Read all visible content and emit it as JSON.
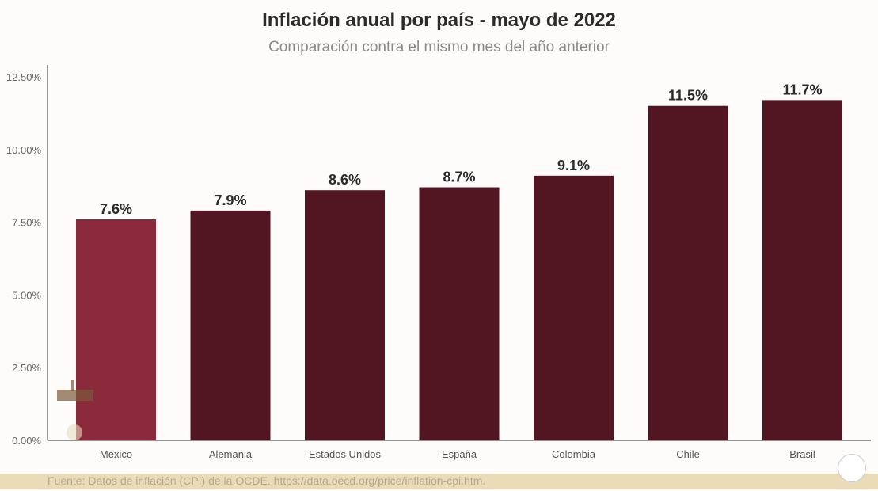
{
  "chart_data": {
    "type": "bar",
    "title": "Inflación anual por país - mayo de 2022",
    "subtitle": "Comparación contra el mismo mes del año anterior",
    "categories": [
      "México",
      "Alemania",
      "Estados Unidos",
      "España",
      "Colombia",
      "Chile",
      "Brasil"
    ],
    "values": [
      7.6,
      7.9,
      8.6,
      8.7,
      9.1,
      11.5,
      11.7
    ],
    "data_labels": [
      "7.6%",
      "7.9%",
      "8.6%",
      "8.7%",
      "9.1%",
      "11.5%",
      "11.7%"
    ],
    "ylim": [
      0,
      12.5
    ],
    "yticks": [
      "0.00%",
      "2.50%",
      "5.00%",
      "7.50%",
      "10.00%",
      "12.50%"
    ],
    "ytick_values": [
      0,
      2.5,
      5,
      7.5,
      10,
      12.5
    ],
    "xlabel": "",
    "ylabel": "",
    "grid": false,
    "colors": {
      "highlight": "#8b2a3a",
      "default": "#521522"
    }
  },
  "footer": {
    "source": "Fuente: Datos de inflación (CPI) de la OCDE. https://data.oecd.org/price/inflation-cpi.htm."
  }
}
